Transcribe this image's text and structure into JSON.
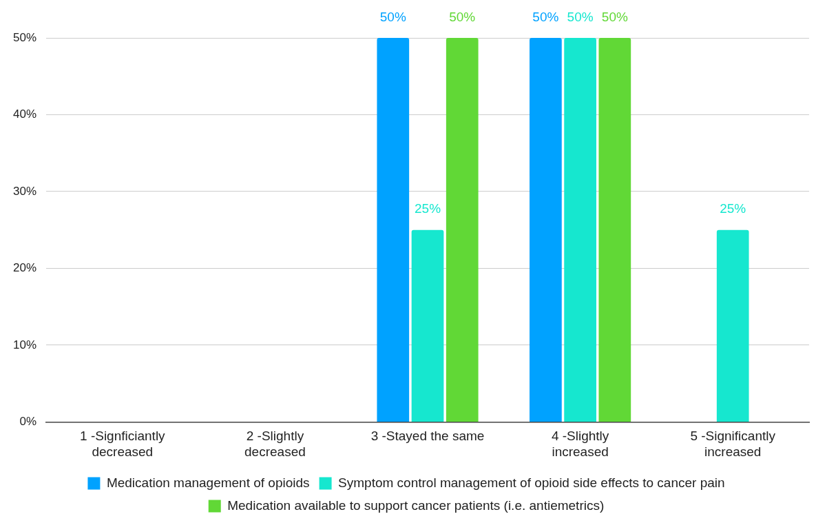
{
  "chart_data": {
    "type": "bar",
    "categories": [
      "1 -Signficiantly decreased",
      "2 -Slightly decreased",
      "3 -Stayed the same",
      "4 -Slightly increased",
      "5 -Significantly increased"
    ],
    "series": [
      {
        "name": "Medication management of opioids",
        "color": "#00a2ff",
        "values": [
          null,
          null,
          50,
          50,
          null
        ],
        "value_labels": [
          null,
          null,
          "50%",
          "50%",
          null
        ]
      },
      {
        "name": "Symptom control management of opioid side effects to cancer pain",
        "color": "#16e7cf",
        "values": [
          null,
          null,
          25,
          50,
          25
        ],
        "value_labels": [
          null,
          null,
          "25%",
          "50%",
          "25%"
        ]
      },
      {
        "name": "Medication available to support cancer patients (i.e. antiemetrics)",
        "color": "#61d836",
        "values": [
          null,
          null,
          50,
          50,
          null
        ],
        "value_labels": [
          null,
          null,
          "50%",
          "50%",
          null
        ]
      }
    ],
    "ylim": [
      0,
      50
    ],
    "yticks": [
      {
        "value": 0,
        "label": "0%"
      },
      {
        "value": 10,
        "label": "10%"
      },
      {
        "value": 20,
        "label": "20%"
      },
      {
        "value": 30,
        "label": "30%"
      },
      {
        "value": 40,
        "label": "40%"
      },
      {
        "value": 50,
        "label": "50%"
      }
    ],
    "grid": "y",
    "legend": "bottom"
  }
}
